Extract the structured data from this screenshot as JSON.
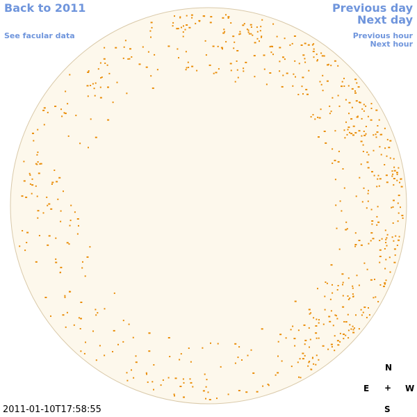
{
  "nav": {
    "back": "Back to 2011",
    "facular": "See facular data",
    "previous_day": "Previous day",
    "next_day": "Next day",
    "previous_hour": "Previous hour",
    "next_hour": "Next hour"
  },
  "timestamp": "2011-01-10T17:58:55",
  "compass": {
    "north": "N",
    "east": "E",
    "center": "+",
    "west": "W",
    "south": "S"
  }
}
